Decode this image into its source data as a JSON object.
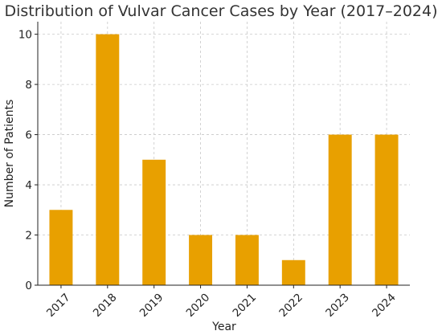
{
  "colors": {
    "bar": "#E8A000"
  },
  "chart_data": {
    "type": "bar",
    "title": "Distribution of Vulvar Cancer Cases by Year (2017–2024)",
    "xlabel": "Year",
    "ylabel": "Number of Patients",
    "categories": [
      "2017",
      "2018",
      "2019",
      "2020",
      "2021",
      "2022",
      "2023",
      "2024"
    ],
    "values": [
      3,
      10,
      5,
      2,
      2,
      1,
      6,
      6
    ],
    "ylim": [
      0,
      10.5
    ],
    "yticks": [
      0,
      2,
      4,
      6,
      8,
      10
    ],
    "grid": true,
    "x_tick_rotation_deg": -45
  }
}
